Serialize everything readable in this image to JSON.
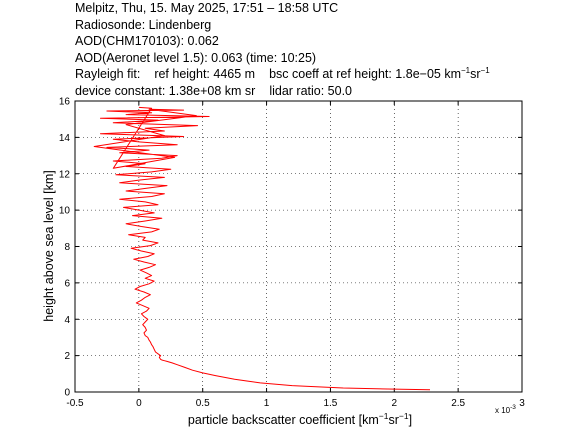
{
  "header": {
    "line1": "Melpitz, Thu, 15. May 2025, 17:51 – 18:58 UTC",
    "line2": "Radiosonde: Lindenberg",
    "line3": "AOD(CHM170103): 0.062",
    "line4": "AOD(Aeronet level 1.5): 0.063   (time: 10:25)",
    "rayleigh_label": "Rayleigh fit:",
    "ref_height": "ref height: 4465 m",
    "bsc_coeff_prefix": "bsc coeff at ref height: 1.8e−05 km",
    "bsc_coeff_exp1": "−1",
    "bsc_coeff_mid": "sr",
    "bsc_coeff_exp2": "−1",
    "device_constant": "device constant: 1.38e+08 km sr",
    "lidar_ratio": "lidar ratio: 50.0"
  },
  "chart_data": {
    "type": "line",
    "xlabel_prefix": "particle backscatter coefficient [km",
    "xlabel_exp1": "−1",
    "xlabel_mid": "sr",
    "xlabel_exp2": "−1",
    "xlabel_suffix": "]",
    "ylabel": "height above sea level [km]",
    "x_multiplier": "x 10",
    "x_multiplier_exp": "-3",
    "xlim": [
      -0.5,
      3
    ],
    "ylim": [
      0,
      16
    ],
    "xticks": [
      -0.5,
      0,
      0.5,
      1,
      1.5,
      2,
      2.5,
      3
    ],
    "xtick_labels": [
      "-0.5",
      "0",
      "0.5",
      "1",
      "1.5",
      "2",
      "2.5",
      "3"
    ],
    "yticks": [
      0,
      2,
      4,
      6,
      8,
      10,
      12,
      14,
      16
    ],
    "ytick_labels": [
      "0",
      "2",
      "4",
      "6",
      "8",
      "10",
      "12",
      "14",
      "16"
    ],
    "grid": true,
    "line_color": "#ff0000",
    "series": [
      {
        "x": [
          2.28,
          2.0,
          1.6,
          1.2,
          0.95,
          0.75,
          0.6,
          0.5,
          0.42,
          0.36,
          0.3,
          0.26,
          0.22,
          0.2,
          0.18,
          0.17,
          0.16,
          0.17,
          0.15,
          0.13,
          0.12,
          0.11,
          0.1,
          0.09,
          0.08,
          0.07,
          0.05,
          0.04,
          0.06,
          0.05,
          0.03,
          0.05,
          0.07,
          0.04,
          0.02,
          0.06,
          0.08,
          0.03,
          -0.02,
          0.02,
          0.05,
          0.09,
          0.04,
          -0.03,
          0.01,
          0.08,
          0.12,
          0.05,
          0.1,
          0.06,
          0.01,
          0.08,
          0.13,
          0.04,
          -0.04,
          0.07,
          0.12,
          0.02,
          -0.06,
          0.09,
          0.15,
          0.03,
          0.05,
          -0.08,
          0.1,
          0.16,
          0.02,
          -0.1,
          0.05,
          0.18,
          -0.05,
          0.12,
          0.0,
          -0.12,
          0.15,
          0.05,
          -0.15,
          0.1,
          0.2,
          -0.1,
          0.06,
          0.22,
          -0.15,
          0.0,
          0.2,
          -0.18,
          0.1,
          0.25,
          -0.1,
          0.05,
          -0.2,
          0.18,
          0.3,
          -0.15,
          0.08,
          -0.25,
          0.3,
          0.0,
          -0.2,
          0.35,
          -0.3,
          0.2,
          0.05,
          0.46,
          -0.2,
          0.15,
          -0.3,
          0.55,
          -0.1,
          0.1,
          -0.25,
          0.35,
          0.08,
          0.45,
          -0.1,
          0.2,
          -0.35,
          0.28,
          -0.2,
          0.1,
          0.0
        ],
        "y": [
          0.12,
          0.16,
          0.22,
          0.35,
          0.5,
          0.7,
          0.9,
          1.05,
          1.2,
          1.35,
          1.5,
          1.6,
          1.68,
          1.72,
          1.76,
          1.8,
          1.9,
          2.0,
          2.1,
          2.2,
          2.35,
          2.5,
          2.6,
          2.75,
          2.85,
          3.0,
          3.1,
          3.25,
          3.4,
          3.55,
          3.7,
          3.85,
          4.0,
          4.15,
          4.3,
          4.45,
          4.6,
          4.75,
          4.9,
          5.05,
          5.2,
          5.35,
          5.5,
          5.65,
          5.8,
          5.95,
          6.1,
          6.25,
          6.4,
          6.55,
          6.7,
          6.85,
          7.0,
          7.15,
          7.3,
          7.45,
          7.6,
          7.75,
          7.9,
          8.05,
          8.2,
          8.35,
          8.5,
          8.65,
          8.8,
          8.95,
          9.1,
          9.25,
          9.4,
          9.55,
          9.7,
          9.85,
          10.0,
          10.15,
          10.3,
          10.45,
          10.6,
          10.75,
          10.9,
          11.05,
          11.2,
          11.35,
          11.5,
          11.65,
          11.8,
          11.95,
          12.1,
          12.25,
          12.4,
          12.55,
          12.7,
          12.85,
          13.0,
          13.15,
          13.3,
          13.45,
          13.6,
          13.75,
          13.9,
          14.05,
          14.2,
          14.35,
          14.5,
          14.65,
          14.8,
          14.95,
          15.05,
          15.15,
          15.25,
          15.35,
          15.45,
          15.5,
          15.55,
          15.2,
          14.7,
          14.1,
          13.5,
          12.9,
          12.3,
          15.6,
          15.65
        ]
      }
    ]
  }
}
